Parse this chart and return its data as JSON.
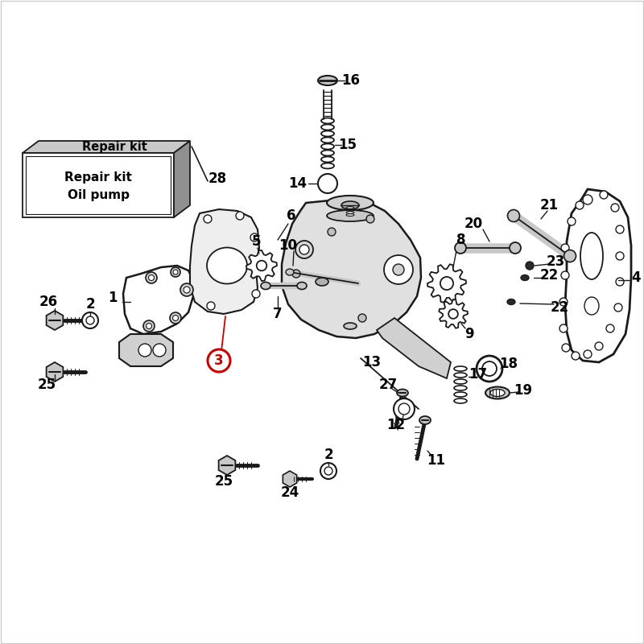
{
  "bg_color": "#ffffff",
  "lc": "#1a1a1a",
  "lg": "#c8c8c8",
  "mg": "#909090",
  "dk": "#2a2a2a",
  "hc": "#cc0000",
  "box_text1": "Repair kit",
  "box_text2": "Oil pump",
  "figsize": [
    8.0,
    8.0
  ],
  "dpi": 100,
  "border_color": "#cc3333"
}
